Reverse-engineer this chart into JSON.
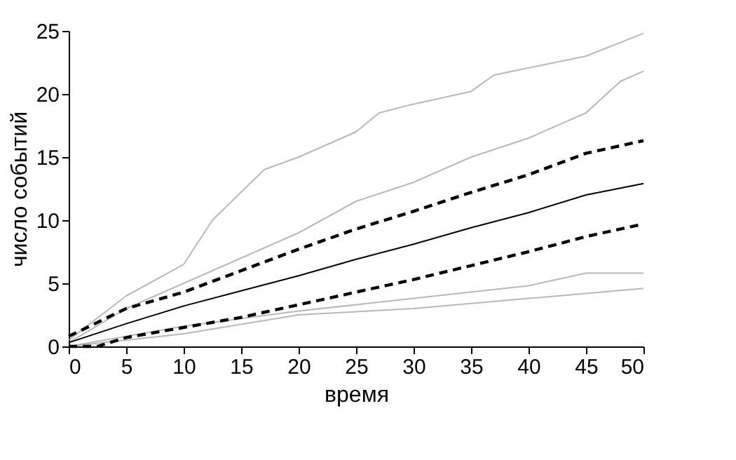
{
  "chart_data": {
    "type": "line",
    "xlabel": "время",
    "ylabel": "число  событий",
    "xlim": [
      0,
      50
    ],
    "ylim": [
      0,
      25
    ],
    "xticks": [
      0,
      5,
      10,
      15,
      20,
      25,
      30,
      35,
      40,
      45,
      50
    ],
    "yticks": [
      0,
      5,
      10,
      15,
      20,
      25
    ],
    "marker": "none",
    "series": [
      {
        "color": "#a6a6a6",
        "line_style": "solid",
        "x": [
          0,
          5,
          10,
          12.5,
          17,
          20,
          25,
          27,
          30,
          35,
          37,
          45,
          50
        ],
        "values": [
          0.5,
          4,
          6.5,
          10,
          14,
          15,
          17,
          18.5,
          19.2,
          20.2,
          21.5,
          23,
          24.8
        ]
      },
      {
        "color": "#a6a6a6",
        "line_style": "solid",
        "x": [
          0,
          5,
          10,
          15,
          20,
          25,
          30,
          35,
          40,
          45,
          48,
          50
        ],
        "values": [
          0.3,
          3,
          5,
          7,
          9,
          11.5,
          13,
          15,
          16.5,
          18.5,
          21,
          21.8
        ]
      },
      {
        "color": "#a6a6a6",
        "line_style": "solid",
        "x": [
          0,
          10,
          20,
          30,
          40,
          50
        ],
        "values": [
          0,
          1,
          2.5,
          3,
          3.8,
          4.6
        ]
      },
      {
        "color": "#a6a6a6",
        "line_style": "solid",
        "x": [
          0,
          10,
          20,
          30,
          40,
          45,
          50
        ],
        "values": [
          0,
          1.6,
          2.8,
          3.8,
          4.8,
          5.8,
          5.8
        ]
      },
      {
        "color": "#000000",
        "line_style": "solid",
        "x": [
          0,
          5,
          10,
          15,
          20,
          25,
          30,
          35,
          40,
          45,
          50
        ],
        "values": [
          0.3,
          1.8,
          3.2,
          4.4,
          5.6,
          6.9,
          8.1,
          9.4,
          10.6,
          12,
          12.9
        ]
      },
      {
        "color": "#000000",
        "line_style": "dashed",
        "x": [
          0,
          5,
          10,
          15,
          20,
          25,
          30,
          35,
          40,
          45,
          50
        ],
        "values": [
          0.8,
          3,
          4.3,
          6,
          7.7,
          9.3,
          10.7,
          12.2,
          13.6,
          15.3,
          16.3
        ]
      },
      {
        "color": "#000000",
        "line_style": "dashed",
        "x": [
          0,
          2.5,
          5,
          10,
          15,
          20,
          25,
          30,
          35,
          40,
          45,
          50
        ],
        "values": [
          0,
          0,
          0.7,
          1.5,
          2.3,
          3.3,
          4.3,
          5.3,
          6.4,
          7.5,
          8.7,
          9.7
        ]
      }
    ]
  }
}
